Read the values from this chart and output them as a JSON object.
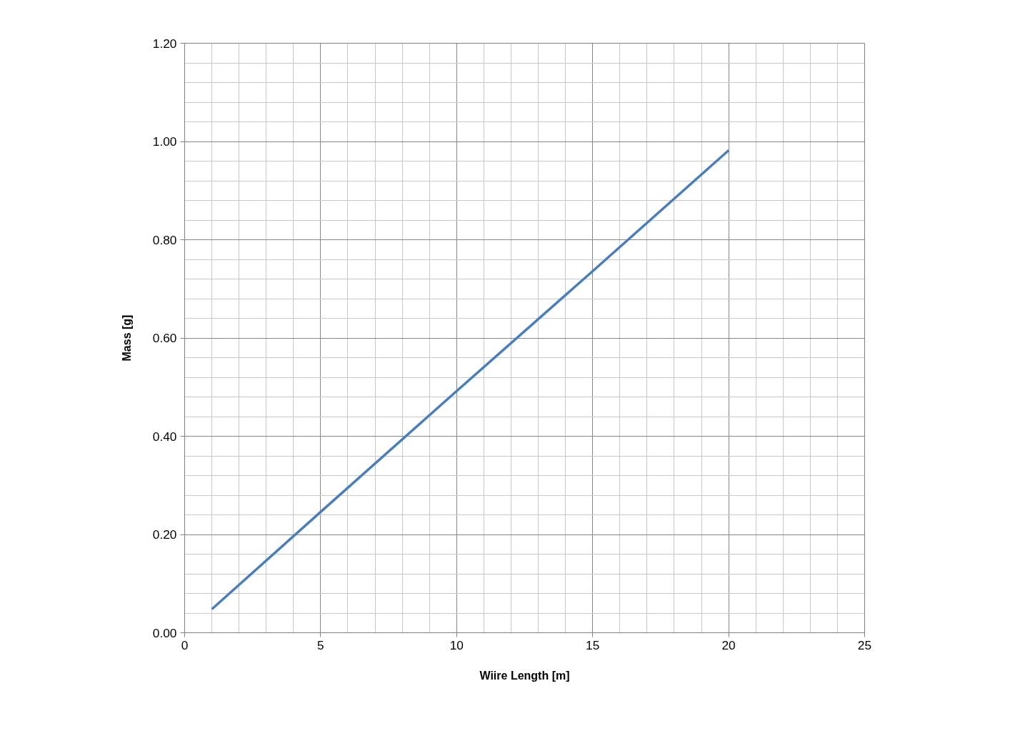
{
  "chart_data": {
    "type": "line",
    "xlabel": "Wiire Length [m]",
    "ylabel": "Mass [g]",
    "x": [
      1,
      5,
      10,
      15,
      20
    ],
    "series": [
      {
        "color": "#4a7ebb",
        "values": [
          0.048,
          0.246,
          0.492,
          0.736,
          0.982
        ]
      }
    ],
    "xlim": [
      0,
      25
    ],
    "xticks": [
      0,
      5,
      10,
      15,
      20,
      25
    ],
    "ylim": [
      0,
      1.2
    ],
    "yticks": [
      {
        "value": 0,
        "label": "0.00"
      },
      {
        "value": 0.2,
        "label": "0.20"
      },
      {
        "value": 0.4,
        "label": "0.40"
      },
      {
        "value": 0.6,
        "label": "0.60"
      },
      {
        "value": 0.8,
        "label": "0.80"
      },
      {
        "value": 1.0,
        "label": "1.00"
      },
      {
        "value": 1.2,
        "label": "1.20"
      }
    ],
    "grid": true,
    "marker": "none",
    "line_style": "solid"
  }
}
